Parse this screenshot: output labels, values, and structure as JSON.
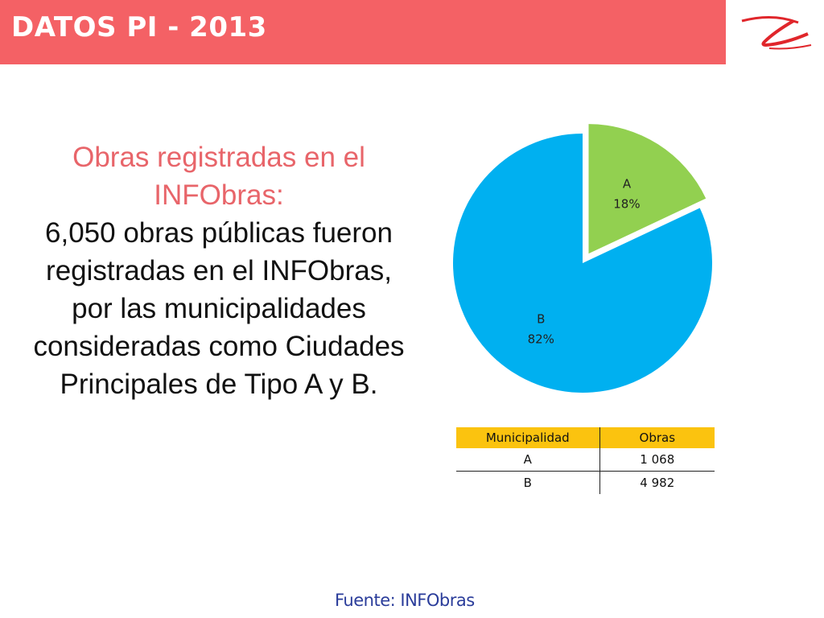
{
  "header": {
    "title": "DATOS PI - 2013"
  },
  "text": {
    "subtitle": "Obras registradas en el INFObras:",
    "body": "6,050 obras públicas fueron registradas en el INFObras, por las municipalidades consideradas como Ciudades Principales de Tipo A y B."
  },
  "colors": {
    "header": "#f46165",
    "slice_a": "#92d050",
    "slice_b": "#00b0f0",
    "table_header": "#fbc30f",
    "subtitle": "#e8656a",
    "source": "#2a3c9a"
  },
  "chart_data": {
    "type": "pie",
    "categories": [
      "A",
      "B"
    ],
    "values": [
      18,
      82
    ],
    "labels": [
      "18%",
      "82%"
    ],
    "exploded": [
      "A"
    ]
  },
  "table": {
    "headers": [
      "Municipalidad",
      "Obras"
    ],
    "rows": [
      [
        "A",
        "1 068"
      ],
      [
        "B",
        "4 982"
      ]
    ]
  },
  "source": "Fuente: INFObras"
}
